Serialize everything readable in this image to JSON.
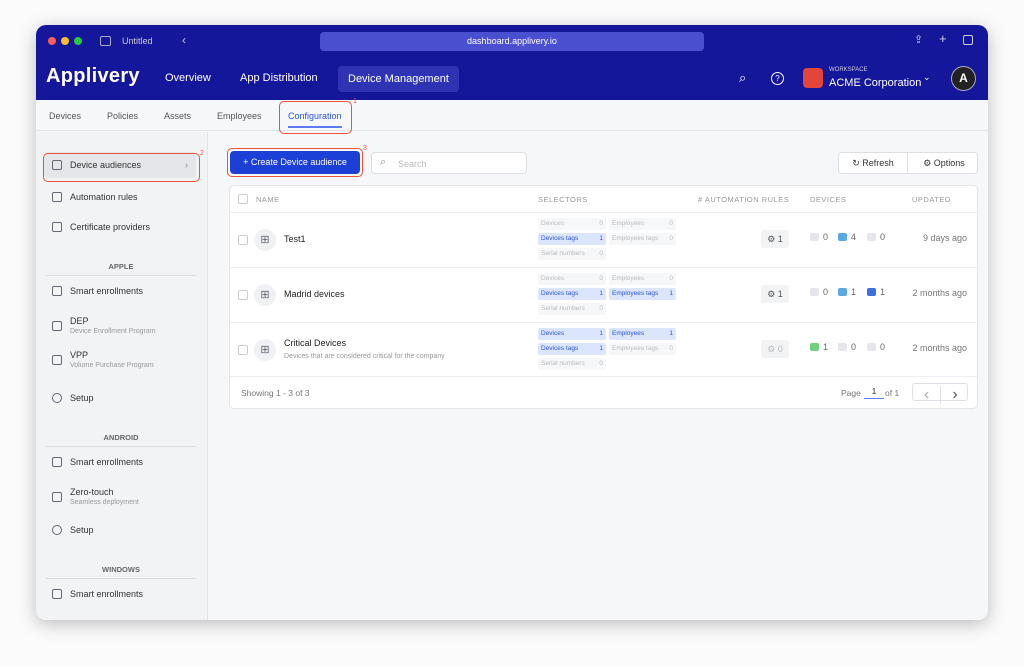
{
  "browser": {
    "tab_title": "Untitled",
    "url": "dashboard.applivery.io"
  },
  "header": {
    "logo": "Applivery",
    "nav": [
      "Overview",
      "App Distribution",
      "Device Management"
    ],
    "active_nav": "Device Management",
    "workspace_label": "WORKSPACE",
    "workspace_name": "ACME Corporation"
  },
  "subtabs": [
    "Devices",
    "Policies",
    "Assets",
    "Employees",
    "Configuration"
  ],
  "active_subtab": "Configuration",
  "sidebar": {
    "items": [
      {
        "label": "Device audiences",
        "icon": "audience-icon"
      },
      {
        "label": "Automation rules",
        "icon": "automation-icon"
      },
      {
        "label": "Certificate providers",
        "icon": "certificate-icon"
      }
    ],
    "apple": {
      "title": "APPLE",
      "items": [
        {
          "label": "Smart enrollments"
        },
        {
          "label": "DEP",
          "sub": "Device Enrollment Program"
        },
        {
          "label": "VPP",
          "sub": "Volume Purchase Program"
        },
        {
          "label": "Setup"
        }
      ]
    },
    "android": {
      "title": "ANDROID",
      "items": [
        {
          "label": "Smart enrollments"
        },
        {
          "label": "Zero-touch",
          "sub": "Seamless deployment"
        },
        {
          "label": "Setup"
        }
      ]
    },
    "windows": {
      "title": "WINDOWS",
      "items": [
        {
          "label": "Smart enrollments"
        }
      ]
    }
  },
  "toolbar": {
    "create_label": "+ Create Device audience",
    "search_placeholder": "Search",
    "refresh": "Refresh",
    "options": "Options"
  },
  "table": {
    "headers": [
      "NAME",
      "SELECTORS",
      "# AUTOMATION RULES",
      "DEVICES",
      "UPDATED"
    ],
    "rows": [
      {
        "name": "Test1",
        "desc": "",
        "sel": {
          "devices": "0",
          "employees": "0",
          "devices_tags": "1",
          "employees_tags": "0",
          "serial": "0"
        },
        "rules": "1",
        "android": "0",
        "apple": "4",
        "windows": "0",
        "updated": "9 days ago"
      },
      {
        "name": "Madrid devices",
        "desc": "",
        "sel": {
          "devices": "0",
          "employees": "0",
          "devices_tags": "1",
          "employees_tags": "1",
          "serial": "0"
        },
        "rules": "1",
        "android": "0",
        "apple": "1",
        "windows": "1",
        "updated": "2 months ago"
      },
      {
        "name": "Critical Devices",
        "desc": "Devices that are considered critical for the company",
        "sel": {
          "devices": "1",
          "employees": "1",
          "devices_tags": "1",
          "employees_tags": "0",
          "serial": "0"
        },
        "rules": "0",
        "android": "1",
        "apple": "0",
        "windows": "0",
        "updated": "2 months ago"
      }
    ],
    "selector_labels": {
      "devices": "Devices",
      "employees": "Employees",
      "devices_tags": "Devices tags",
      "employees_tags": "Employees tags",
      "serial": "Serial numbers"
    },
    "footer": {
      "showing": "Showing 1 - 3 of 3",
      "page_label": "Page",
      "page": "1",
      "of": "of 1"
    }
  },
  "annotations": [
    "1",
    "2",
    "3"
  ],
  "colors": {
    "header": "#14179a",
    "accent": "#1c3fd6",
    "highlight": "#e8533a"
  }
}
